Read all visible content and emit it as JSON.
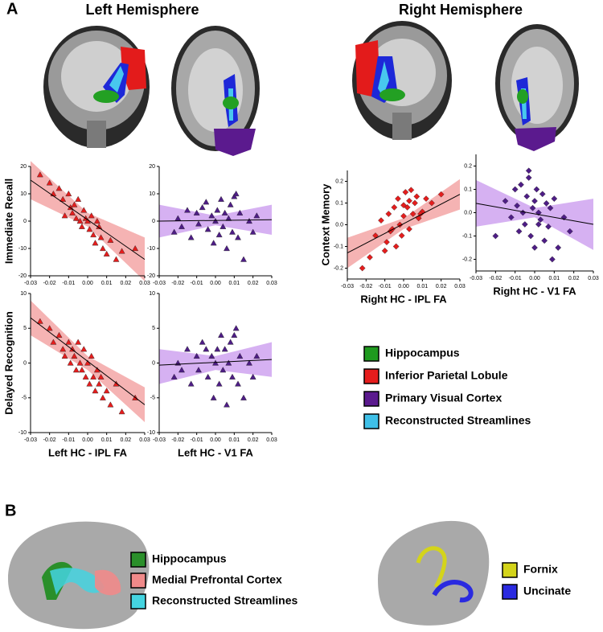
{
  "figure": {
    "panel_a": "A",
    "left_title": "Left Hemisphere",
    "right_title": "Right Hemisphere",
    "panel_b": "B",
    "legend_a": [
      {
        "label": "Hippocampus",
        "color": "#1f9a1f"
      },
      {
        "label": "Inferior Parietal Lobule",
        "color": "#e51d1d"
      },
      {
        "label": "Primary Visual Cortex",
        "color": "#5b1a8e"
      },
      {
        "label": "Reconstructed Streamlines",
        "color": "#3fc0e8"
      }
    ],
    "legend_b_left": [
      {
        "label": "Hippocampus",
        "color": "#2a8f2a"
      },
      {
        "label": "Medial Prefrontal Cortex",
        "color": "#f08a8a"
      },
      {
        "label": "Reconstructed Streamlines",
        "color": "#44d4e0"
      }
    ],
    "legend_b_right": [
      {
        "label": "Fornix",
        "color": "#d4d41a"
      },
      {
        "label": "Uncinate",
        "color": "#2a2ae0"
      }
    ]
  },
  "chart_data": [
    {
      "type": "scatter",
      "ylabel": "Immediate Recall",
      "marker": "triangle",
      "color": "#e51d1d",
      "band_color": "#f29a9a",
      "x": [
        -0.025,
        -0.02,
        -0.018,
        -0.015,
        -0.013,
        -0.012,
        -0.01,
        -0.009,
        -0.008,
        -0.007,
        -0.006,
        -0.005,
        -0.004,
        -0.003,
        -0.002,
        -0.001,
        0,
        0.001,
        0.002,
        0.003,
        0.004,
        0.005,
        0.006,
        0.007,
        0.008,
        0.01,
        0.012,
        0.015,
        0.018,
        0.025
      ],
      "values": [
        17,
        14,
        10,
        12,
        8,
        2,
        10,
        5,
        3,
        6,
        1,
        8,
        0,
        -2,
        4,
        1,
        0,
        -3,
        2,
        -5,
        -8,
        0,
        -2,
        -6,
        -10,
        -12,
        -7,
        -14,
        -11,
        -10
      ],
      "fit": {
        "x": [
          -0.03,
          0.03
        ],
        "y": [
          15,
          -14
        ]
      },
      "band": {
        "x": [
          -0.03,
          0,
          0.03
        ],
        "upper": [
          22,
          3,
          -6
        ],
        "lower": [
          8,
          -2,
          -22
        ]
      },
      "xlim": [
        -0.03,
        0.03
      ],
      "ylim": [
        -20,
        20
      ],
      "xticks": [
        -0.03,
        -0.02,
        -0.01,
        {
          "value": 0,
          "label": "0.00"
        },
        0.01,
        0.02,
        0.03
      ],
      "yticks": [
        20,
        10,
        0,
        -10,
        -20
      ]
    },
    {
      "type": "scatter",
      "marker": "triangle",
      "color": "#4e1d86",
      "band_color": "#c897ee",
      "x": [
        -0.022,
        -0.02,
        -0.018,
        -0.015,
        -0.013,
        -0.01,
        -0.009,
        -0.007,
        -0.005,
        -0.004,
        -0.002,
        -0.001,
        0,
        0.001,
        0.002,
        0.003,
        0.004,
        0.005,
        0.006,
        0.007,
        0.008,
        0.009,
        0.01,
        0.011,
        0.012,
        0.013,
        0.015,
        0.018,
        0.02,
        0.022
      ],
      "values": [
        -4,
        1,
        -2,
        4,
        -6,
        3,
        -1,
        5,
        7,
        -3,
        2,
        -8,
        0,
        4,
        -5,
        8,
        -2,
        3,
        -10,
        1,
        6,
        -4,
        9,
        10,
        -6,
        3,
        -14,
        0,
        -4,
        2
      ],
      "fit": {
        "x": [
          -0.03,
          0.03
        ],
        "y": [
          0,
          0.5
        ]
      },
      "band": {
        "x": [
          -0.03,
          0,
          0.03
        ],
        "upper": [
          6,
          2,
          6
        ],
        "lower": [
          -6,
          -1.5,
          -5
        ]
      },
      "xlim": [
        -0.03,
        0.03
      ],
      "ylim": [
        -20,
        20
      ],
      "xticks": [
        -0.03,
        -0.02,
        -0.01,
        {
          "value": 0,
          "label": "0.00"
        },
        0.01,
        0.02,
        0.03
      ],
      "yticks": [
        20,
        10,
        0,
        -10,
        -20
      ]
    },
    {
      "type": "scatter",
      "ylabel": "Delayed Recognition",
      "xlabel": "Left HC - IPL FA",
      "marker": "triangle",
      "color": "#e51d1d",
      "band_color": "#f29a9a",
      "x": [
        -0.025,
        -0.02,
        -0.018,
        -0.015,
        -0.013,
        -0.012,
        -0.01,
        -0.009,
        -0.008,
        -0.007,
        -0.006,
        -0.005,
        -0.004,
        -0.003,
        -0.002,
        -0.001,
        0,
        0.001,
        0.002,
        0.003,
        0.004,
        0.005,
        0.006,
        0.007,
        0.008,
        0.01,
        0.012,
        0.015,
        0.018,
        0.025
      ],
      "values": [
        6,
        5,
        3,
        4,
        2,
        1,
        3,
        0,
        2,
        1,
        -1,
        3,
        0,
        -1,
        2,
        -2,
        0,
        -3,
        1,
        -2,
        -4,
        -1,
        -3,
        -2,
        -5,
        -4,
        -6,
        -3,
        -7,
        -5
      ],
      "fit": {
        "x": [
          -0.03,
          0.03
        ],
        "y": [
          6.5,
          -6
        ]
      },
      "band": {
        "x": [
          -0.03,
          0,
          0.03
        ],
        "upper": [
          9,
          1,
          -3.5
        ],
        "lower": [
          4,
          -1,
          -8.5
        ]
      },
      "xlim": [
        -0.03,
        0.03
      ],
      "ylim": [
        -10,
        10
      ],
      "xticks": [
        -0.03,
        -0.02,
        -0.01,
        {
          "value": 0,
          "label": "0.00"
        },
        0.01,
        0.02,
        0.03
      ],
      "yticks": [
        10,
        5,
        0,
        -5,
        -10
      ]
    },
    {
      "type": "scatter",
      "xlabel": "Left HC - V1 FA",
      "marker": "triangle",
      "color": "#4e1d86",
      "band_color": "#c897ee",
      "x": [
        -0.022,
        -0.02,
        -0.018,
        -0.015,
        -0.013,
        -0.01,
        -0.009,
        -0.007,
        -0.005,
        -0.004,
        -0.002,
        -0.001,
        0,
        0.001,
        0.002,
        0.003,
        0.004,
        0.005,
        0.006,
        0.007,
        0.008,
        0.009,
        0.01,
        0.011,
        0.012,
        0.013,
        0.015,
        0.018,
        0.02,
        0.022
      ],
      "values": [
        -2,
        0,
        -1,
        2,
        -3,
        1,
        -1,
        3,
        2,
        -2,
        1,
        -5,
        0,
        2,
        -3,
        4,
        -1,
        2,
        -6,
        0,
        3,
        -2,
        4,
        5,
        -3,
        1,
        -5,
        0,
        -2,
        1
      ],
      "fit": {
        "x": [
          -0.03,
          0.03
        ],
        "y": [
          -0.3,
          0.5
        ]
      },
      "band": {
        "x": [
          -0.03,
          0,
          0.03
        ],
        "upper": [
          2,
          1,
          3
        ],
        "lower": [
          -3,
          -1,
          -2
        ]
      },
      "xlim": [
        -0.03,
        0.03
      ],
      "ylim": [
        -10,
        10
      ],
      "xticks": [
        -0.03,
        -0.02,
        -0.01,
        {
          "value": 0,
          "label": "0.00"
        },
        0.01,
        0.02,
        0.03
      ],
      "yticks": [
        10,
        5,
        0,
        -5,
        -10
      ]
    },
    {
      "type": "scatter",
      "ylabel": "Context Memory",
      "xlabel": "Right HC - IPL FA",
      "marker": "diamond",
      "color": "#e51d1d",
      "band_color": "#f29a9a",
      "x": [
        -0.022,
        -0.018,
        -0.015,
        -0.012,
        -0.01,
        -0.009,
        -0.008,
        -0.007,
        -0.005,
        -0.004,
        -0.003,
        -0.002,
        -0.001,
        0,
        0.001,
        0.002,
        0.003,
        0.004,
        0.005,
        0.006,
        0.007,
        0.008,
        0.01,
        0.012,
        0.015,
        0.02,
        -0.006,
        0.0,
        0.003,
        0.009
      ],
      "values": [
        -0.2,
        -0.15,
        -0.05,
        0.02,
        -0.12,
        -0.08,
        0.05,
        -0.03,
        0.08,
        -0.1,
        0.12,
        0,
        -0.05,
        0.04,
        0.15,
        0.08,
        -0.02,
        0.16,
        0.05,
        0.1,
        0.13,
        0.03,
        0.06,
        0.12,
        0.1,
        0.14,
        -0.02,
        0.09,
        0.11,
        0.05
      ],
      "fit": {
        "x": [
          -0.03,
          0.03
        ],
        "y": [
          -0.13,
          0.14
        ]
      },
      "band": {
        "x": [
          -0.03,
          0,
          0.03
        ],
        "upper": [
          -0.06,
          0.03,
          0.21
        ],
        "lower": [
          -0.2,
          -0.02,
          0.07
        ]
      },
      "xlim": [
        -0.03,
        0.03
      ],
      "ylim": [
        -0.25,
        0.25
      ],
      "xticks": [
        -0.03,
        -0.02,
        -0.01,
        {
          "value": 0,
          "label": "0.00"
        },
        0.01,
        0.02,
        0.03
      ],
      "yticks": [
        0.2,
        0.1,
        {
          "value": 0,
          "label": "0.0"
        },
        -0.1,
        -0.2
      ]
    },
    {
      "type": "scatter",
      "xlabel": "Right HC - V1 FA",
      "marker": "diamond",
      "color": "#4e1d86",
      "band_color": "#c897ee",
      "x": [
        -0.02,
        -0.015,
        -0.012,
        -0.01,
        -0.009,
        -0.008,
        -0.007,
        -0.006,
        -0.005,
        -0.004,
        -0.003,
        -0.002,
        -0.001,
        0,
        0,
        0.001,
        0.002,
        0.003,
        0.004,
        0.005,
        0.006,
        0.007,
        0.008,
        0.009,
        0.01,
        0.012,
        0.015,
        0.018,
        -0.003,
        0.002
      ],
      "values": [
        -0.1,
        0.05,
        -0.02,
        0.1,
        0.03,
        -0.08,
        0.12,
        0,
        -0.05,
        0.07,
        0.15,
        -0.1,
        0.02,
        0.05,
        -0.15,
        0.1,
        0,
        -0.03,
        0.08,
        -0.12,
        0.04,
        -0.06,
        0.02,
        -0.2,
        0.06,
        -0.15,
        -0.02,
        -0.08,
        0.18,
        -0.05
      ],
      "fit": {
        "x": [
          -0.03,
          0.03
        ],
        "y": [
          0.04,
          -0.05
        ]
      },
      "band": {
        "x": [
          -0.03,
          0,
          0.03
        ],
        "upper": [
          0.14,
          0.02,
          0.06
        ],
        "lower": [
          -0.06,
          -0.02,
          -0.16
        ]
      },
      "xlim": [
        -0.03,
        0.03
      ],
      "ylim": [
        -0.25,
        0.25
      ],
      "xticks": [
        -0.03,
        -0.02,
        -0.01,
        {
          "value": 0,
          "label": "0.00"
        },
        0.01,
        0.02,
        0.03
      ],
      "yticks": [
        0.2,
        0.1,
        {
          "value": 0,
          "label": "0.0"
        },
        -0.1,
        -0.2
      ]
    }
  ]
}
